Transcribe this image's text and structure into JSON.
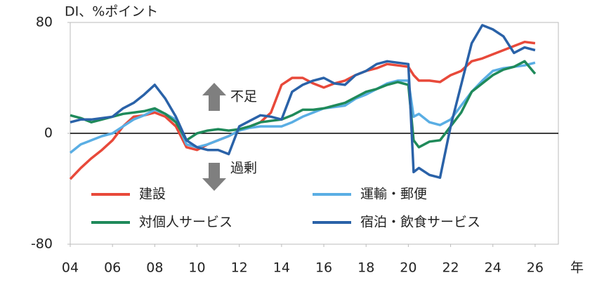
{
  "chart_data": {
    "type": "line",
    "ylabel": "DI、%ポイント",
    "xlabel": "年",
    "annotations": [
      "不足",
      "過剰"
    ],
    "x": [
      2004,
      2004.5,
      2005,
      2005.5,
      2006,
      2006.5,
      2007,
      2007.5,
      2008,
      2008.5,
      2009,
      2009.5,
      2010,
      2010.5,
      2011,
      2011.5,
      2012,
      2012.5,
      2013,
      2013.5,
      2014,
      2014.5,
      2015,
      2015.5,
      2016,
      2016.5,
      2017,
      2017.5,
      2018,
      2018.5,
      2019,
      2019.5,
      2020,
      2020.25,
      2020.5,
      2021,
      2021.5,
      2022,
      2022.5,
      2023,
      2023.5,
      2024,
      2024.5,
      2025,
      2025.5,
      2026
    ],
    "series": [
      {
        "name": "建設",
        "color": "#e8493a",
        "values": [
          -33,
          -25,
          -18,
          -12,
          -5,
          5,
          12,
          13,
          15,
          12,
          5,
          -10,
          -12,
          -8,
          -5,
          -2,
          2,
          5,
          8,
          15,
          35,
          40,
          40,
          36,
          33,
          36,
          38,
          42,
          45,
          47,
          50,
          49,
          48,
          42,
          38,
          38,
          37,
          42,
          45,
          52,
          54,
          57,
          60,
          63,
          66,
          65
        ]
      },
      {
        "name": "運輸・郵便",
        "color": "#5aaee4",
        "values": [
          -14,
          -8,
          -5,
          -2,
          0,
          5,
          10,
          13,
          17,
          14,
          10,
          -8,
          -10,
          -8,
          -5,
          -2,
          2,
          4,
          5,
          5,
          5,
          8,
          12,
          15,
          18,
          19,
          20,
          25,
          28,
          32,
          36,
          38,
          38,
          12,
          14,
          8,
          6,
          10,
          20,
          30,
          38,
          45,
          47,
          48,
          49,
          51
        ]
      },
      {
        "name": "対個人サービス",
        "color": "#1f8a5a",
        "values": [
          13,
          11,
          8,
          10,
          12,
          14,
          15,
          16,
          18,
          14,
          8,
          -5,
          0,
          2,
          3,
          2,
          3,
          5,
          8,
          9,
          10,
          13,
          17,
          17,
          18,
          20,
          22,
          26,
          30,
          32,
          35,
          37,
          35,
          -5,
          -10,
          -6,
          -5,
          5,
          15,
          30,
          36,
          42,
          46,
          48,
          52,
          43
        ]
      },
      {
        "name": "宿泊・飲食サービス",
        "color": "#2a62a8",
        "values": [
          8,
          10,
          10,
          11,
          12,
          18,
          22,
          28,
          35,
          25,
          12,
          -5,
          -10,
          -12,
          -12,
          -15,
          5,
          9,
          13,
          12,
          10,
          30,
          35,
          38,
          40,
          36,
          35,
          42,
          45,
          50,
          52,
          51,
          50,
          -28,
          -25,
          -30,
          -32,
          5,
          35,
          65,
          78,
          75,
          70,
          58,
          62,
          60
        ]
      }
    ],
    "xlim": [
      2004,
      2027.1
    ],
    "xticks": [
      {
        "value": 2004,
        "label": "04"
      },
      {
        "value": 2006,
        "label": "06"
      },
      {
        "value": 2008,
        "label": "08"
      },
      {
        "value": 2010,
        "label": "10"
      },
      {
        "value": 2012,
        "label": "12"
      },
      {
        "value": 2014,
        "label": "14"
      },
      {
        "value": 2016,
        "label": "16"
      },
      {
        "value": 2018,
        "label": "18"
      },
      {
        "value": 2020,
        "label": "20"
      },
      {
        "value": 2022,
        "label": "22"
      },
      {
        "value": 2024,
        "label": "24"
      },
      {
        "value": 2026,
        "label": "26"
      }
    ],
    "ylim": [
      -80,
      80
    ],
    "yticks": [
      -80,
      0,
      80
    ]
  }
}
